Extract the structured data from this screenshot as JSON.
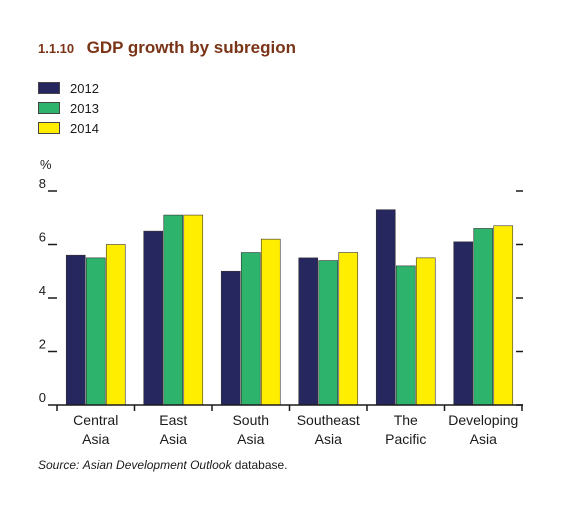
{
  "figure": {
    "number": "1.1.10",
    "title": "GDP growth by subregion"
  },
  "source": {
    "lead": "Source:",
    "publication": "Asian Development Outlook",
    "tail": "database."
  },
  "colors": {
    "title": "#7a3417",
    "2012": "#26275f",
    "2013": "#2db36c",
    "2014": "#ffee00"
  },
  "chart_data": {
    "type": "bar",
    "title": "",
    "ylabel": "%",
    "xlabel": "",
    "ylim": [
      0,
      8
    ],
    "yticks": [
      "0",
      "2",
      "4",
      "6",
      "8"
    ],
    "grid": false,
    "legend_position": "top-left",
    "categories": [
      [
        "Central",
        "Asia"
      ],
      [
        "East",
        "Asia"
      ],
      [
        "South",
        "Asia"
      ],
      [
        "Southeast",
        "Asia"
      ],
      [
        "The",
        "Pacific"
      ],
      [
        "Developing",
        "Asia"
      ]
    ],
    "series": [
      {
        "name": "2012",
        "color": "#26275f",
        "values": [
          5.6,
          6.5,
          5.0,
          5.5,
          7.3,
          6.1
        ]
      },
      {
        "name": "2013",
        "color": "#2db36c",
        "values": [
          5.5,
          7.1,
          5.7,
          5.4,
          5.2,
          6.6
        ]
      },
      {
        "name": "2014",
        "color": "#ffee00",
        "values": [
          6.0,
          7.1,
          6.2,
          5.7,
          5.5,
          6.7
        ]
      }
    ]
  }
}
